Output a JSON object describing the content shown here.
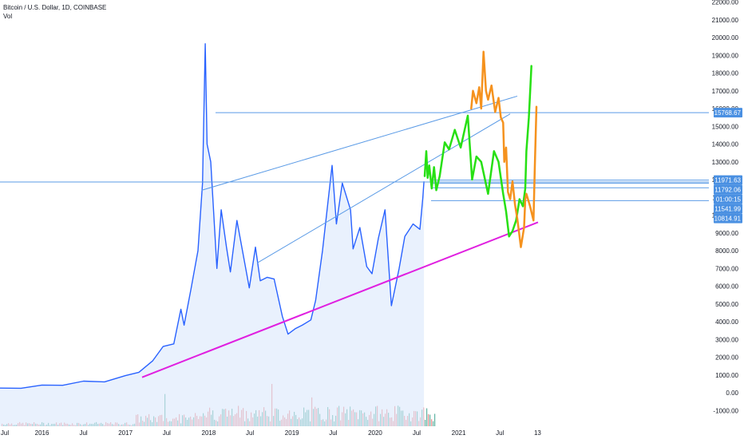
{
  "header": {
    "symbol_line": "Bitcoin / U.S. Dollar, 1D, COINBASE",
    "volume_label": "Vol"
  },
  "colors": {
    "price_line": "#2962ff",
    "price_fill": "#dbe8fb",
    "horizontal_levels": "#5b9be6",
    "support_trendline": "#e020e0",
    "projection_green": "#27e014",
    "projection_orange": "#f5921e",
    "volume_up": "#5fb3a3",
    "volume_down": "#ef8c8c",
    "axis_badge_bg": "#4a90e2",
    "axis_text": "#131722"
  },
  "chart_data": {
    "type": "line",
    "title": "Bitcoin / U.S. Dollar, 1D, COINBASE",
    "xlabel": "",
    "ylabel": "",
    "ylim": [
      -1200,
      22000
    ],
    "xlim": [
      "2015-07-01",
      "2021-12-15"
    ],
    "x_ticks": [
      "Jul",
      "2016",
      "Jul",
      "2017",
      "Jul",
      "2018",
      "Jul",
      "2019",
      "Jul",
      "2020",
      "Jul",
      "2021",
      "Jul",
      "13"
    ],
    "y_ticks": [
      -1000,
      0,
      1000,
      2000,
      3000,
      4000,
      5000,
      6000,
      7000,
      8000,
      9000,
      10000,
      11000,
      12000,
      13000,
      14000,
      15000,
      16000,
      17000,
      18000,
      19000,
      20000,
      21000,
      22000
    ],
    "price_series": {
      "name": "BTCUSD",
      "x": [
        "2015-07-01",
        "2015-10-01",
        "2016-01-01",
        "2016-04-01",
        "2016-07-01",
        "2016-10-01",
        "2017-01-01",
        "2017-03-01",
        "2017-05-01",
        "2017-06-15",
        "2017-08-01",
        "2017-09-01",
        "2017-09-15",
        "2017-10-15",
        "2017-11-15",
        "2017-12-05",
        "2017-12-17",
        "2017-12-25",
        "2018-01-10",
        "2018-02-06",
        "2018-02-25",
        "2018-03-20",
        "2018-04-06",
        "2018-05-05",
        "2018-06-28",
        "2018-07-25",
        "2018-08-15",
        "2018-09-15",
        "2018-10-15",
        "2018-11-20",
        "2018-12-15",
        "2019-01-15",
        "2019-02-15",
        "2019-03-25",
        "2019-04-15",
        "2019-05-15",
        "2019-06-26",
        "2019-07-15",
        "2019-08-10",
        "2019-09-15",
        "2019-09-26",
        "2019-10-26",
        "2019-11-25",
        "2019-12-18",
        "2020-01-15",
        "2020-02-13",
        "2020-03-12",
        "2020-04-15",
        "2020-05-10",
        "2020-06-15",
        "2020-07-15",
        "2020-07-28",
        "2020-08-02"
      ],
      "values": [
        260,
        250,
        430,
        420,
        650,
        610,
        960,
        1150,
        1800,
        2600,
        2750,
        4700,
        3800,
        5800,
        8000,
        11800,
        19650,
        14000,
        13000,
        7000,
        10300,
        8200,
        6800,
        9700,
        5900,
        8200,
        6300,
        6500,
        6400,
        4300,
        3300,
        3600,
        3800,
        4100,
        5200,
        8000,
        12800,
        9500,
        11800,
        10300,
        8100,
        9300,
        7100,
        6700,
        8700,
        10300,
        4900,
        7000,
        8800,
        9500,
        9200,
        11000,
        11900
      ]
    },
    "horizontal_levels": [
      15768.67,
      11971.63,
      11792.06,
      11541.99,
      10814.91
    ],
    "price_badges": [
      "15768.67",
      "11971.63",
      "11792.06",
      "01:00:15",
      "11541.99",
      "10814.91"
    ],
    "support_trendline": {
      "x": [
        "2017-03-15",
        "2021-12-15"
      ],
      "y": [
        870,
        9600
      ]
    },
    "channel_upper": {
      "x": [
        "2017-12-01",
        "2021-09-15"
      ],
      "y": [
        11400,
        16700
      ]
    },
    "channel_lower": {
      "x": [
        "2018-08-01",
        "2021-08-15"
      ],
      "y": [
        7300,
        15700
      ]
    },
    "projection_green": {
      "x": [
        "2020-08-05",
        "2020-08-12",
        "2020-08-18",
        "2020-08-25",
        "2020-09-05",
        "2020-09-15",
        "2020-09-25",
        "2020-10-10",
        "2020-11-01",
        "2020-11-20",
        "2020-12-15",
        "2021-01-10",
        "2021-02-10",
        "2021-03-01",
        "2021-03-20",
        "2021-04-10",
        "2021-05-10",
        "2021-06-05",
        "2021-06-25",
        "2021-07-15",
        "2021-07-28",
        "2021-08-10",
        "2021-08-25",
        "2021-09-10",
        "2021-09-25",
        "2021-10-10",
        "2021-10-20",
        "2021-10-25",
        "2021-11-05",
        "2021-11-12",
        "2021-11-16"
      ],
      "y": [
        12200,
        13600,
        12100,
        12800,
        11500,
        12700,
        11400,
        12200,
        14100,
        13700,
        14800,
        13800,
        15600,
        12000,
        13300,
        13000,
        11200,
        13600,
        13000,
        11200,
        10200,
        8800,
        9100,
        9700,
        10900,
        10500,
        11500,
        13600,
        15500,
        17300,
        18400
      ],
      "name": ""
    },
    "projection_orange": {
      "x": [
        "2021-02-25",
        "2021-03-05",
        "2021-03-20",
        "2021-04-01",
        "2021-04-10",
        "2021-04-20",
        "2021-05-01",
        "2021-05-10",
        "2021-05-25",
        "2021-06-10",
        "2021-06-25",
        "2021-07-05",
        "2021-07-15",
        "2021-07-20",
        "2021-07-28",
        "2021-08-05",
        "2021-08-15",
        "2021-08-25",
        "2021-09-05",
        "2021-09-15",
        "2021-10-01",
        "2021-10-15",
        "2021-10-20",
        "2021-10-25",
        "2021-11-10",
        "2021-11-25",
        "2021-12-01",
        "2021-12-08"
      ],
      "y": [
        16000,
        17000,
        16300,
        17200,
        16000,
        19200,
        17000,
        16500,
        17300,
        15800,
        16600,
        15500,
        15200,
        13000,
        13800,
        11300,
        10900,
        11900,
        10600,
        9800,
        8200,
        9300,
        10900,
        11200,
        10500,
        9700,
        12800,
        16100
      ],
      "name": ""
    }
  }
}
